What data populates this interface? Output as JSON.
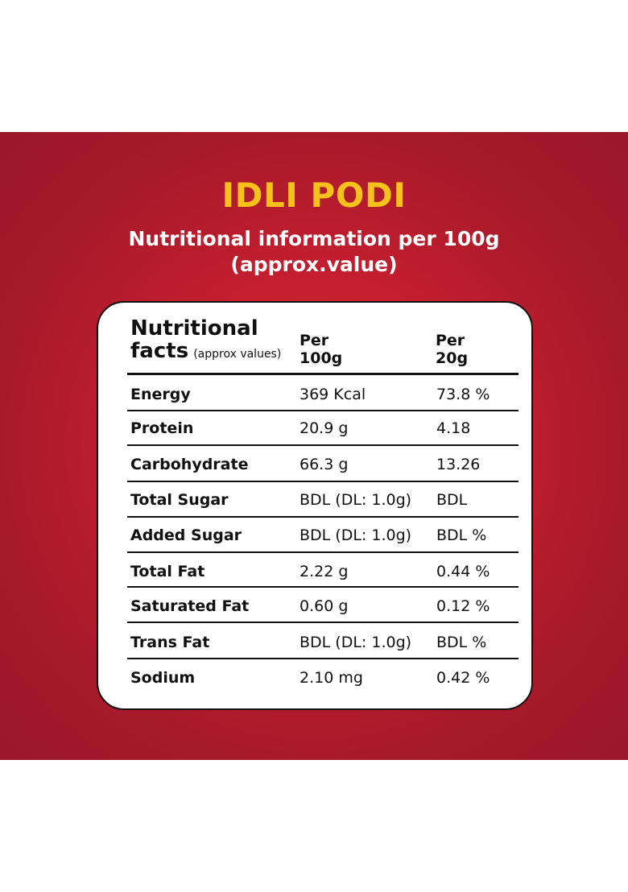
{
  "product": {
    "title": "IDLI PODI",
    "subtitle_line1": "Nutritional information per 100g",
    "subtitle_line2": "(approx.value)"
  },
  "colors": {
    "background_red": "#c71f30",
    "title_yellow": "#f5c21b",
    "card_white": "#ffffff",
    "text_black": "#111111"
  },
  "table": {
    "header": {
      "facts_line1": "Nutritional",
      "facts_line2": "facts",
      "facts_note": "(approx values)",
      "col1_line1": "Per",
      "col1_line2": "100g",
      "col2_line1": "Per",
      "col2_line2": "20g"
    },
    "rows": [
      {
        "nutrient": "Energy",
        "per100g": "369 Kcal",
        "per20g": "73.8 %"
      },
      {
        "nutrient": "Protein",
        "per100g": "20.9 g",
        "per20g": "4.18"
      },
      {
        "nutrient": "Carbohydrate",
        "per100g": "66.3 g",
        "per20g": "13.26"
      },
      {
        "nutrient": "Total Sugar",
        "per100g": "BDL (DL: 1.0g)",
        "per20g": "BDL"
      },
      {
        "nutrient": "Added Sugar",
        "per100g": "BDL (DL: 1.0g)",
        "per20g": "BDL %"
      },
      {
        "nutrient": "Total Fat",
        "per100g": "2.22 g",
        "per20g": "0.44 %"
      },
      {
        "nutrient": "Saturated Fat",
        "per100g": "0.60 g",
        "per20g": "0.12 %"
      },
      {
        "nutrient": "Trans Fat",
        "per100g": "BDL (DL: 1.0g)",
        "per20g": "BDL %"
      },
      {
        "nutrient": "Sodium",
        "per100g": "2.10 mg",
        "per20g": "0.42 %"
      }
    ]
  }
}
